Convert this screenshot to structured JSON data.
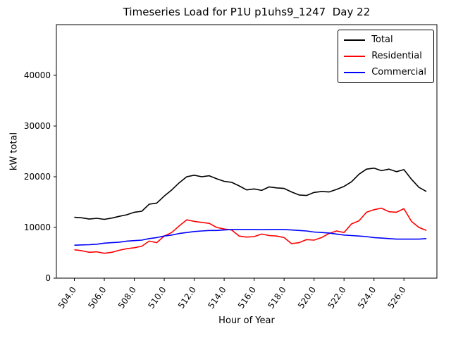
{
  "chart_data": {
    "type": "line",
    "title": "Timeseries Load for P1U p1uhs9_1247  Day 22",
    "xlabel": "Hour of Year",
    "ylabel": "kW total",
    "xlim": [
      502.8,
      528.2
    ],
    "ylim": [
      0,
      50000
    ],
    "grid": false,
    "legend_position": "upper right",
    "x_ticks": [
      504,
      506,
      508,
      510,
      512,
      514,
      516,
      518,
      520,
      522,
      524,
      526
    ],
    "x_tick_labels": [
      "504.0",
      "506.0",
      "508.0",
      "510.0",
      "512.0",
      "514.0",
      "516.0",
      "518.0",
      "520.0",
      "522.0",
      "524.0",
      "526.0"
    ],
    "y_ticks": [
      0,
      10000,
      20000,
      30000,
      40000
    ],
    "x": [
      504,
      504.5,
      505,
      505.5,
      506,
      506.5,
      507,
      507.5,
      508,
      508.5,
      509,
      509.5,
      510,
      510.5,
      511,
      511.5,
      512,
      512.5,
      513,
      513.5,
      514,
      514.5,
      515,
      515.5,
      516,
      516.5,
      517,
      517.5,
      518,
      518.5,
      519,
      519.5,
      520,
      520.5,
      521,
      521.5,
      522,
      522.5,
      523,
      523.5,
      524,
      524.5,
      525,
      525.5,
      526,
      526.5,
      527,
      527.5
    ],
    "series": [
      {
        "name": "Total",
        "color": "#000000",
        "values": [
          12000,
          11900,
          11650,
          11800,
          11600,
          11850,
          12200,
          12500,
          13000,
          13200,
          14600,
          14800,
          16200,
          17400,
          18800,
          20000,
          20300,
          20000,
          20200,
          19600,
          19100,
          18900,
          18200,
          17400,
          17600,
          17300,
          18000,
          17800,
          17700,
          17000,
          16400,
          16300,
          16900,
          17100,
          17000,
          17500,
          18100,
          19000,
          20500,
          21500,
          21700,
          21200,
          21500,
          21000,
          21400,
          19500,
          17900,
          17100
        ]
      },
      {
        "name": "Residential",
        "color": "#ff0000",
        "values": [
          5600,
          5400,
          5100,
          5200,
          4900,
          5100,
          5500,
          5800,
          6000,
          6300,
          7300,
          7000,
          8300,
          9000,
          10300,
          11500,
          11200,
          11000,
          10800,
          10000,
          9700,
          9500,
          8300,
          8100,
          8200,
          8700,
          8400,
          8300,
          8000,
          6800,
          7000,
          7600,
          7500,
          8000,
          8800,
          9300,
          9000,
          10700,
          11300,
          13000,
          13500,
          13800,
          13100,
          13000,
          13700,
          11200,
          10000,
          9400
        ]
      },
      {
        "name": "Commercial",
        "color": "#0000ff",
        "values": [
          6500,
          6550,
          6600,
          6700,
          6900,
          7000,
          7100,
          7300,
          7400,
          7500,
          7800,
          8000,
          8300,
          8500,
          8800,
          9000,
          9200,
          9300,
          9400,
          9400,
          9500,
          9600,
          9600,
          9600,
          9600,
          9550,
          9600,
          9600,
          9600,
          9500,
          9400,
          9300,
          9100,
          9000,
          8900,
          8700,
          8500,
          8400,
          8300,
          8200,
          8000,
          7900,
          7800,
          7700,
          7700,
          7700,
          7700,
          7800
        ]
      }
    ]
  }
}
